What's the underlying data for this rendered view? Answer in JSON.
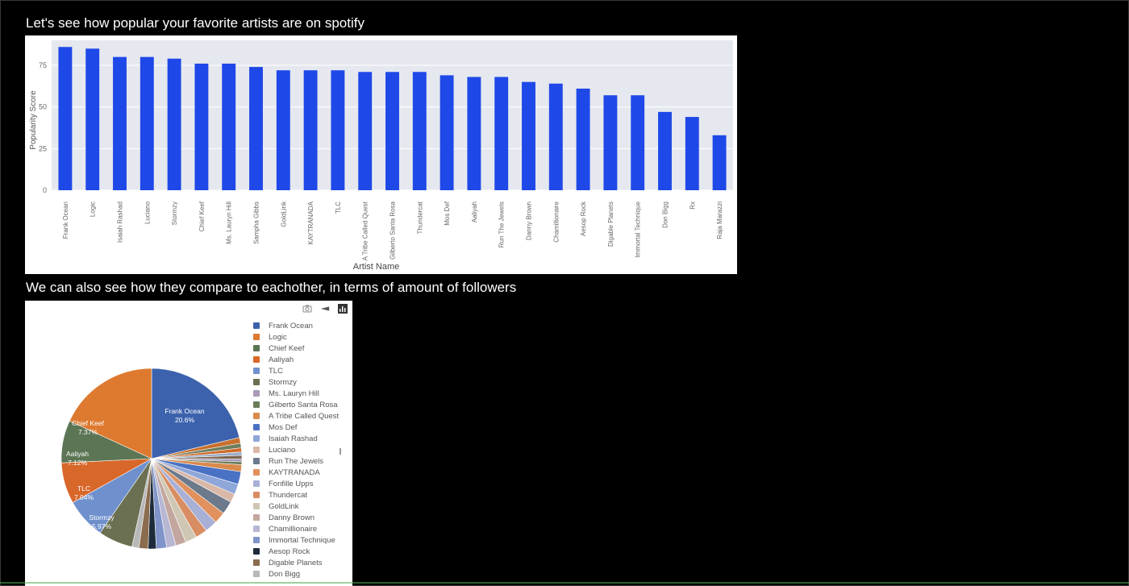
{
  "headings": {
    "bar_title": "Let's see how popular your favorite artists are on spotify",
    "pie_title": "We can also see how they compare to eachother, in terms of amount of followers"
  },
  "icons": {
    "camera": "camera-icon",
    "zoom": "zoom-icon",
    "plotly": "plotly-logo-icon"
  },
  "chart_data": [
    {
      "type": "bar",
      "categories": [
        "Frank Ocean",
        "Logic",
        "Isaiah Rashad",
        "Luciano",
        "Stormzy",
        "Chief Keef",
        "Ms. Lauryn Hill",
        "Sampha Gibbs",
        "GoldLink",
        "KAYTRANADA",
        "TLC",
        "A Tribe Called Quest",
        "Gilberto Santa Rosa",
        "Thundercat",
        "Mos Def",
        "Aaliyah",
        "Run The Jewels",
        "Danny Brown",
        "Chamillionaire",
        "Aesop Rock",
        "Digable Planets",
        "Immortal Technique",
        "Don Bigg",
        "Rx",
        "Raja Marazzi"
      ],
      "values": [
        86,
        85,
        80,
        80,
        79,
        76,
        76,
        74,
        72,
        72,
        72,
        71,
        71,
        71,
        69,
        68,
        68,
        65,
        64,
        61,
        57,
        57,
        47,
        44,
        33
      ],
      "xlabel": "Artist Name",
      "ylabel": "Popularity Score",
      "yticks": [
        0,
        25,
        50,
        75
      ],
      "ylim": [
        0,
        90
      ],
      "color": "#1f48e8",
      "plot_bg": "#e5e8ef",
      "grid": true
    },
    {
      "type": "pie",
      "slice_labels": [
        {
          "name": "Frank Ocean",
          "pct": "20.6%"
        },
        {
          "name": "Chief Keef",
          "pct": "7.37%"
        },
        {
          "name": "Aaliyah",
          "pct": "7.12%"
        },
        {
          "name": "TLC",
          "pct": "7.04%"
        },
        {
          "name": "Stormzy",
          "pct": "5.97%"
        }
      ],
      "slices": [
        {
          "label": "Frank Ocean",
          "value": 20.6,
          "color": "#3c62ad"
        },
        {
          "label": "Logic",
          "value": 1.0,
          "color": "#c8702e"
        },
        {
          "label": "Chief Keef",
          "value": 0.8,
          "color": "#6e7d5c"
        },
        {
          "label": "Aaliyah",
          "value": 0.7,
          "color": "#d16a2a"
        },
        {
          "label": "TLC",
          "value": 0.6,
          "color": "#9daec9"
        },
        {
          "label": "Stormzy",
          "value": 0.6,
          "color": "#7a6752"
        },
        {
          "label": "Ms. Lauryn Hill",
          "value": 0.5,
          "color": "#a89ab8"
        },
        {
          "label": "Gilberto Santa Rosa",
          "value": 0.5,
          "color": "#6a7c5a"
        },
        {
          "label": "A Tribe Called Quest",
          "value": 1.2,
          "color": "#d98a4d"
        },
        {
          "label": "Mos Def",
          "value": 2.2,
          "color": "#4a72c4"
        },
        {
          "label": "Isaiah Rashad",
          "value": 1.8,
          "color": "#8fa6d9"
        },
        {
          "label": "Luciano",
          "value": 1.5,
          "color": "#d9b8a8"
        },
        {
          "label": "Run The Jewels",
          "value": 2.3,
          "color": "#6d7a8c"
        },
        {
          "label": "KAYTRANADA",
          "value": 2.0,
          "color": "#e0915d"
        },
        {
          "label": "Fonfille Upps",
          "value": 2.2,
          "color": "#a9b0d6"
        },
        {
          "label": "Thundercat",
          "value": 2.0,
          "color": "#d98d62"
        },
        {
          "label": "GoldLink",
          "value": 2.0,
          "color": "#cfc7b3"
        },
        {
          "label": "Danny Brown",
          "value": 1.8,
          "color": "#c3a79f"
        },
        {
          "label": "Chamillionaire",
          "value": 1.6,
          "color": "#b7b7d4"
        },
        {
          "label": "Immortal Technique",
          "value": 1.8,
          "color": "#7f94c8"
        },
        {
          "label": "Aesop Rock",
          "value": 1.4,
          "color": "#1d2b3a"
        },
        {
          "label": "Digable Planets",
          "value": 1.6,
          "color": "#8a6c4e"
        },
        {
          "label": "Don Bigg",
          "value": 1.2,
          "color": "#b8b8b8"
        },
        {
          "label": "Stormzy ",
          "value": 5.97,
          "color": "#6b7052"
        },
        {
          "label": "TLC ",
          "value": 7.04,
          "color": "#6f90cc"
        },
        {
          "label": "Aaliyah ",
          "value": 7.12,
          "color": "#d8672a"
        },
        {
          "label": "Chief Keef ",
          "value": 7.37,
          "color": "#5c7554"
        },
        {
          "label": "Logic ",
          "value": 17.6,
          "color": "#dd7a30"
        }
      ],
      "legend": [
        {
          "name": "Frank Ocean",
          "color": "#3c62ad"
        },
        {
          "name": "Logic",
          "color": "#dd7a30"
        },
        {
          "name": "Chief Keef",
          "color": "#5c7554"
        },
        {
          "name": "Aaliyah",
          "color": "#d8672a"
        },
        {
          "name": "TLC",
          "color": "#6f90cc"
        },
        {
          "name": "Stormzy",
          "color": "#6b7052"
        },
        {
          "name": "Ms. Lauryn Hill",
          "color": "#a89ab8"
        },
        {
          "name": "Gilberto Santa Rosa",
          "color": "#6a7c5a"
        },
        {
          "name": "A Tribe Called Quest",
          "color": "#d98a4d"
        },
        {
          "name": "Mos Def",
          "color": "#4a72c4"
        },
        {
          "name": "Isaiah Rashad",
          "color": "#8fa6d9"
        },
        {
          "name": "Luciano",
          "color": "#d9b8a8"
        },
        {
          "name": "Run The Jewels",
          "color": "#6d7a8c"
        },
        {
          "name": "KAYTRANADA",
          "color": "#e0915d"
        },
        {
          "name": "Fonfille Upps",
          "color": "#a9b0d6"
        },
        {
          "name": "Thundercat",
          "color": "#d98d62"
        },
        {
          "name": "GoldLink",
          "color": "#cfc7b3"
        },
        {
          "name": "Danny Brown",
          "color": "#c3a79f"
        },
        {
          "name": "Chamillionaire",
          "color": "#b7b7d4"
        },
        {
          "name": "Immortal Technique",
          "color": "#7f94c8"
        },
        {
          "name": "Aesop Rock",
          "color": "#1d2b3a"
        },
        {
          "name": "Digable Planets",
          "color": "#8a6c4e"
        },
        {
          "name": "Don Bigg",
          "color": "#b8b8b8"
        }
      ]
    }
  ]
}
